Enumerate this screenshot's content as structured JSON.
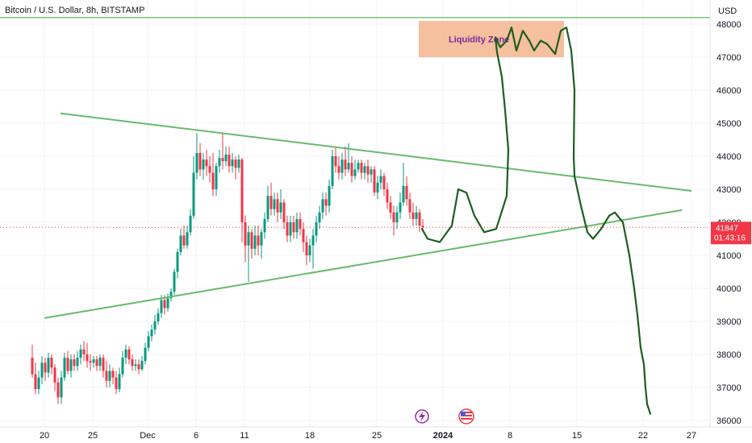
{
  "header": {
    "title": "Bitcoin / U.S. Dollar, 8h, BITSTAMP",
    "currency": "USD"
  },
  "price_tag": {
    "price": "41847",
    "countdown": "01:43:16"
  },
  "chart_data": {
    "type": "candlestick",
    "title": "Bitcoin / U.S. Dollar, 8h, BITSTAMP",
    "ylabel": "USD",
    "ylim": [
      35900,
      48300
    ],
    "y_ticks": [
      36000,
      37000,
      38000,
      39000,
      40000,
      41000,
      42000,
      43000,
      44000,
      45000,
      46000,
      47000,
      48000
    ],
    "x_ticks": [
      {
        "label": "20",
        "date": "2023-11-20"
      },
      {
        "label": "25",
        "date": "2023-11-25"
      },
      {
        "label": "Dec",
        "date": "2023-12-01"
      },
      {
        "label": "6",
        "date": "2023-12-06"
      },
      {
        "label": "11",
        "date": "2023-12-11"
      },
      {
        "label": "18",
        "date": "2023-12-18"
      },
      {
        "label": "25",
        "date": "2023-12-25"
      },
      {
        "label": "2024",
        "date": "2024-01-01"
      },
      {
        "label": "8",
        "date": "2024-01-08"
      },
      {
        "label": "15",
        "date": "2024-01-15"
      },
      {
        "label": "22",
        "date": "2024-01-22"
      },
      {
        "label": "27",
        "date": "2024-01-27"
      }
    ],
    "current_price": 41847,
    "annotations": {
      "liquidity_zone": {
        "label": "Liquidity Zone",
        "price_low": 47000,
        "price_high": 48100
      },
      "upper_trendline": [
        [
          75,
          45300
        ],
        [
          857,
          42950
        ]
      ],
      "lower_trendline": [
        [
          55,
          39100
        ],
        [
          845,
          42370
        ]
      ],
      "horizontal_line": 48200
    },
    "candle_colors": {
      "up": "#089981",
      "down": "#f23645"
    },
    "candles": [
      [
        40,
        3,
        37900,
        37400,
        38300,
        37300
      ],
      [
        44,
        3,
        37400,
        36950,
        37750,
        36800
      ],
      [
        48,
        3,
        36950,
        37300,
        37500,
        36800
      ],
      [
        52,
        3,
        37300,
        37750,
        37950,
        37100
      ],
      [
        56,
        3,
        37750,
        37450,
        37900,
        37200
      ],
      [
        60,
        3,
        37450,
        37900,
        38050,
        37300
      ],
      [
        64,
        3,
        37900,
        37600,
        38000,
        37400
      ],
      [
        68,
        3,
        37600,
        37150,
        37700,
        36900
      ],
      [
        72,
        3,
        37150,
        36700,
        37300,
        36500
      ],
      [
        76,
        3,
        36700,
        37300,
        37500,
        36500
      ],
      [
        80,
        3,
        37300,
        37900,
        38050,
        37200
      ],
      [
        84,
        3,
        37900,
        37500,
        38100,
        37400
      ],
      [
        88,
        3,
        37500,
        37850,
        38000,
        37300
      ],
      [
        92,
        3,
        37850,
        37650,
        38000,
        37500
      ],
      [
        96,
        3,
        37650,
        37900,
        38100,
        37500
      ],
      [
        100,
        3,
        37900,
        38150,
        38300,
        37700
      ],
      [
        104,
        3,
        38150,
        38000,
        38400,
        37800
      ],
      [
        108,
        3,
        38000,
        37800,
        38350,
        37600
      ],
      [
        112,
        3,
        37800,
        37750,
        38000,
        37500
      ],
      [
        116,
        3,
        37750,
        37850,
        37950,
        37600
      ],
      [
        120,
        3,
        37850,
        37650,
        37950,
        37500
      ],
      [
        124,
        3,
        37650,
        37900,
        38000,
        37500
      ],
      [
        128,
        3,
        37900,
        37500,
        38000,
        37300
      ],
      [
        132,
        3,
        37500,
        37200,
        37800,
        37000
      ],
      [
        136,
        3,
        37200,
        37500,
        37700,
        37000
      ],
      [
        140,
        3,
        37500,
        37300,
        37600,
        37100
      ],
      [
        144,
        3,
        37300,
        36950,
        37500,
        36800
      ],
      [
        148,
        3,
        36950,
        37400,
        37600,
        36850
      ],
      [
        152,
        3,
        37400,
        37900,
        38100,
        37300
      ],
      [
        156,
        3,
        37900,
        38150,
        38300,
        37700
      ],
      [
        160,
        3,
        38150,
        37850,
        38250,
        37700
      ],
      [
        164,
        3,
        37850,
        37650,
        38000,
        37500
      ],
      [
        168,
        3,
        37650,
        37700,
        37850,
        37500
      ],
      [
        172,
        3,
        37700,
        37550,
        37850,
        37400
      ],
      [
        176,
        3,
        37550,
        37800,
        37950,
        37500
      ],
      [
        180,
        3,
        37800,
        38200,
        38350,
        37700
      ],
      [
        184,
        3,
        38200,
        38550,
        38700,
        38100
      ],
      [
        188,
        3,
        38550,
        38750,
        38900,
        38400
      ],
      [
        192,
        3,
        38750,
        39000,
        39200,
        38600
      ],
      [
        196,
        3,
        39000,
        39250,
        39400,
        38900
      ],
      [
        200,
        3,
        39250,
        39650,
        39800,
        39100
      ],
      [
        204,
        3,
        39650,
        39400,
        39800,
        39200
      ],
      [
        208,
        3,
        39400,
        39700,
        39850,
        39300
      ],
      [
        212,
        3,
        39700,
        39900,
        40000,
        39600
      ],
      [
        216,
        3,
        39900,
        40500,
        40600,
        39800
      ],
      [
        220,
        3,
        40500,
        41100,
        41200,
        40300
      ],
      [
        224,
        3,
        41100,
        41600,
        41800,
        41000
      ],
      [
        228,
        3,
        41600,
        41300,
        41900,
        41200
      ],
      [
        232,
        3,
        41300,
        41700,
        41900,
        41200
      ],
      [
        236,
        3,
        41700,
        42200,
        42400,
        41600
      ],
      [
        240,
        3,
        42200,
        43500,
        44000,
        42100
      ],
      [
        244,
        3,
        43500,
        44100,
        44700,
        43300
      ],
      [
        248,
        3,
        44100,
        43600,
        44400,
        43400
      ],
      [
        252,
        3,
        43600,
        43900,
        44100,
        43300
      ],
      [
        256,
        3,
        43900,
        43700,
        44200,
        43400
      ],
      [
        260,
        3,
        43700,
        43500,
        44000,
        43200
      ],
      [
        264,
        3,
        43500,
        43000,
        44100,
        42800
      ],
      [
        268,
        3,
        43000,
        43700,
        43800,
        42800
      ],
      [
        272,
        3,
        43700,
        43950,
        44200,
        43500
      ],
      [
        276,
        3,
        43950,
        43850,
        44700,
        43600
      ],
      [
        280,
        3,
        43850,
        44050,
        44300,
        43700
      ],
      [
        284,
        3,
        44050,
        43700,
        44300,
        43500
      ],
      [
        288,
        3,
        43700,
        43900,
        44100,
        43500
      ],
      [
        292,
        3,
        43900,
        43650,
        44000,
        43300
      ],
      [
        296,
        3,
        43650,
        43900,
        44050,
        43500
      ],
      [
        300,
        3,
        43900,
        42000,
        43950,
        41400
      ],
      [
        304,
        3,
        42000,
        41300,
        42200,
        40800
      ],
      [
        308,
        3,
        41300,
        41700,
        41900,
        40200
      ],
      [
        312,
        3,
        41700,
        41200,
        41800,
        40900
      ],
      [
        316,
        3,
        41200,
        41600,
        41900,
        41000
      ],
      [
        320,
        3,
        41600,
        41300,
        41900,
        41000
      ],
      [
        324,
        3,
        41300,
        41700,
        41800,
        40900
      ],
      [
        328,
        3,
        41700,
        42100,
        42300,
        41500
      ],
      [
        332,
        3,
        42100,
        42800,
        43100,
        42000
      ],
      [
        336,
        3,
        42800,
        42400,
        43200,
        42200
      ],
      [
        340,
        3,
        42400,
        42700,
        42900,
        42200
      ],
      [
        344,
        3,
        42700,
        42300,
        42900,
        42000
      ],
      [
        348,
        3,
        42300,
        42600,
        43000,
        42100
      ],
      [
        352,
        3,
        42600,
        42000,
        42700,
        41800
      ],
      [
        356,
        3,
        42000,
        41600,
        42200,
        41400
      ],
      [
        360,
        3,
        41600,
        42000,
        42200,
        41400
      ],
      [
        364,
        3,
        42000,
        41700,
        42200,
        41500
      ],
      [
        368,
        3,
        41700,
        42100,
        42300,
        41500
      ],
      [
        372,
        3,
        42100,
        41800,
        42300,
        41600
      ],
      [
        376,
        3,
        41800,
        41400,
        42000,
        41100
      ],
      [
        380,
        3,
        41400,
        41000,
        41600,
        40700
      ],
      [
        384,
        3,
        41000,
        41300,
        41500,
        40800
      ],
      [
        388,
        3,
        41300,
        41600,
        41800,
        40600
      ],
      [
        392,
        3,
        41600,
        42000,
        42200,
        41400
      ],
      [
        396,
        3,
        42000,
        42300,
        42500,
        41800
      ],
      [
        400,
        3,
        42300,
        42700,
        42900,
        42100
      ],
      [
        404,
        3,
        42700,
        42500,
        42900,
        42200
      ],
      [
        408,
        3,
        42500,
        43100,
        43300,
        42300
      ],
      [
        412,
        3,
        43100,
        44000,
        44200,
        43000
      ],
      [
        416,
        3,
        44000,
        43700,
        44300,
        43500
      ],
      [
        420,
        3,
        43700,
        43500,
        44000,
        43300
      ],
      [
        424,
        3,
        43500,
        43900,
        44100,
        43300
      ],
      [
        428,
        3,
        43900,
        43600,
        44300,
        43400
      ],
      [
        432,
        3,
        43600,
        43800,
        44400,
        43500
      ],
      [
        436,
        3,
        43800,
        43400,
        44000,
        43200
      ],
      [
        440,
        3,
        43400,
        43600,
        43900,
        43300
      ],
      [
        444,
        3,
        43600,
        43800,
        43900,
        43500
      ],
      [
        448,
        3,
        43800,
        43500,
        43900,
        43300
      ],
      [
        452,
        3,
        43500,
        43700,
        43800,
        43300
      ],
      [
        456,
        3,
        43700,
        43450,
        43900,
        43200
      ],
      [
        460,
        3,
        43450,
        43600,
        43700,
        43200
      ],
      [
        464,
        3,
        43600,
        42900,
        43700,
        42800
      ],
      [
        468,
        3,
        42900,
        43200,
        43400,
        42700
      ],
      [
        472,
        3,
        43200,
        43400,
        43600,
        43000
      ],
      [
        476,
        3,
        43400,
        43000,
        43500,
        42800
      ],
      [
        480,
        3,
        43000,
        42600,
        43200,
        42400
      ],
      [
        484,
        3,
        42600,
        42300,
        42800,
        42100
      ],
      [
        488,
        3,
        42300,
        42000,
        42500,
        41600
      ],
      [
        492,
        3,
        42000,
        42300,
        42500,
        41800
      ],
      [
        496,
        3,
        42300,
        42600,
        42900,
        42100
      ],
      [
        500,
        3,
        42600,
        43100,
        43800,
        42500
      ],
      [
        504,
        3,
        43100,
        42700,
        43400,
        42500
      ],
      [
        508,
        3,
        42700,
        42300,
        42900,
        42100
      ],
      [
        512,
        3,
        42300,
        42100,
        42600,
        41900
      ],
      [
        516,
        3,
        42100,
        42300,
        42500,
        41900
      ],
      [
        520,
        3,
        42300,
        41900,
        42400,
        41700
      ],
      [
        524,
        3,
        41900,
        41850,
        42100,
        41700
      ]
    ],
    "projection_path": [
      [
        523,
        41800
      ],
      [
        530,
        41500
      ],
      [
        545,
        41400
      ],
      [
        560,
        41900
      ],
      [
        568,
        43000
      ],
      [
        578,
        42900
      ],
      [
        588,
        42200
      ],
      [
        600,
        41700
      ],
      [
        615,
        41800
      ],
      [
        628,
        42800
      ],
      [
        630,
        44200
      ],
      [
        626,
        45400
      ],
      [
        622,
        46400
      ],
      [
        616,
        47150
      ],
      [
        614,
        47600
      ],
      [
        620,
        47300
      ],
      [
        628,
        47500
      ],
      [
        634,
        47900
      ],
      [
        640,
        47200
      ],
      [
        648,
        47800
      ],
      [
        656,
        47500
      ],
      [
        662,
        47200
      ],
      [
        670,
        47500
      ],
      [
        678,
        47400
      ],
      [
        688,
        47100
      ],
      [
        695,
        47800
      ],
      [
        702,
        47900
      ],
      [
        708,
        47200
      ],
      [
        712,
        46000
      ],
      [
        711,
        44000
      ],
      [
        712,
        43400
      ],
      [
        720,
        42500
      ],
      [
        728,
        41700
      ],
      [
        735,
        41500
      ],
      [
        745,
        41800
      ],
      [
        755,
        42200
      ],
      [
        762,
        42300
      ],
      [
        772,
        42000
      ],
      [
        780,
        41000
      ],
      [
        786,
        40000
      ],
      [
        790,
        39200
      ],
      [
        794,
        38200
      ],
      [
        798,
        37700
      ],
      [
        800,
        37000
      ],
      [
        802,
        36500
      ],
      [
        806,
        36200
      ]
    ]
  }
}
